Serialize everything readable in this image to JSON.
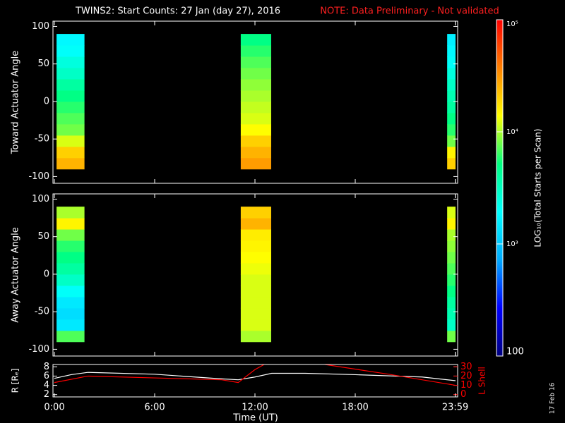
{
  "title": "TWINS2: Start Counts: 27 Jan (day  27), 2016",
  "note": "NOTE: Data Preliminary - Not validated",
  "footer_date": "17 Feb 16",
  "chart_data": [
    {
      "type": "heatmap",
      "ylabel": "Toward Actuator Angle",
      "xlim": [
        0,
        24
      ],
      "ylim": [
        -109,
        107
      ],
      "yticks": [
        -100,
        -50,
        0,
        50,
        100
      ],
      "time_blocks": [
        [
          0.13,
          1.8
        ],
        [
          11.15,
          12.97
        ],
        [
          23.5,
          24
        ]
      ],
      "angle_bins": [
        -90,
        -75,
        -60,
        -45,
        -30,
        -15,
        0,
        15,
        30,
        45,
        60,
        75,
        90
      ],
      "values": [
        [
          25000,
          20000,
          12000,
          8000,
          7000,
          6000,
          5000,
          4000,
          3000,
          2500,
          2000,
          1800
        ],
        [
          30000,
          25000,
          20000,
          14000,
          12000,
          11000,
          10000,
          9000,
          8000,
          7000,
          6000,
          5000
        ],
        [
          20000,
          15000,
          8000,
          6000,
          5000,
          4000,
          3500,
          3000,
          2500,
          2000,
          1800,
          1600
        ]
      ]
    },
    {
      "type": "heatmap",
      "ylabel": "Away Actuator Angle",
      "xlim": [
        0,
        24
      ],
      "ylim": [
        -109,
        107
      ],
      "yticks": [
        -100,
        -50,
        0,
        50,
        100
      ],
      "time_blocks": [
        [
          0.13,
          1.8
        ],
        [
          11.15,
          12.97
        ],
        [
          23.5,
          24
        ]
      ],
      "angle_bins": [
        -90,
        -75,
        -60,
        -45,
        -30,
        -15,
        0,
        15,
        30,
        45,
        60,
        75,
        90
      ],
      "values": [
        [
          7000,
          1500,
          1300,
          1500,
          2000,
          3000,
          4000,
          5000,
          6000,
          8000,
          15000,
          10000
        ],
        [
          10000,
          12000,
          12000,
          12000,
          12000,
          12000,
          13000,
          14000,
          15000,
          16000,
          25000,
          20000
        ],
        [
          8000,
          3000,
          3500,
          4000,
          5000,
          6000,
          7000,
          8000,
          9000,
          10000,
          15000,
          12000
        ]
      ]
    },
    {
      "type": "colorbar",
      "label": "LOG₁₀(Total Starts per Scan)",
      "log_scale": true,
      "lim": [
        100,
        100000
      ],
      "ticks": [
        100,
        {
          "value": 1000,
          "label": "10³"
        },
        {
          "value": 10000,
          "label": "10⁴"
        },
        {
          "value": 100000,
          "label": "10⁵"
        }
      ],
      "colormap": [
        "#000080",
        "#0000ff",
        "#00aaff",
        "#00ffff",
        "#00ff80",
        "#ffff00",
        "#ff8000",
        "#ff0000"
      ]
    },
    {
      "type": "line",
      "xlabel": "Time (UT)",
      "ylabel": "R [Rₑ]",
      "y2label": "L Shell",
      "xlim": [
        0,
        24
      ],
      "xticks": [
        {
          "value": 0,
          "label": "0:00"
        },
        {
          "value": 6,
          "label": "6:00"
        },
        {
          "value": 12,
          "label": "12:00"
        },
        {
          "value": 18,
          "label": "18:00"
        },
        {
          "value": 23.983,
          "label": "23:59"
        }
      ],
      "ylim": [
        1.5,
        8.5
      ],
      "yticks": [
        2,
        4,
        6,
        8
      ],
      "y2lim": [
        -2.5,
        32.5
      ],
      "y2ticks": [
        0,
        10,
        20,
        30
      ],
      "series": [
        {
          "name": "R",
          "color": "#ffffff",
          "x": [
            0,
            1,
            2,
            6,
            10,
            11,
            12,
            13,
            15,
            18,
            22,
            24
          ],
          "values": [
            5.5,
            6.3,
            6.8,
            6.4,
            5.4,
            5.2,
            5.8,
            6.6,
            6.6,
            6.3,
            5.8,
            5.0
          ]
        },
        {
          "name": "L Shell",
          "color": "#ff0000",
          "axis": "y2",
          "x": [
            0,
            2,
            6,
            10,
            11,
            12,
            12.6,
            14,
            16,
            20,
            24
          ],
          "values": [
            13,
            20,
            18,
            16,
            13,
            27,
            33,
            null,
            33,
            22,
            10
          ]
        }
      ]
    }
  ]
}
